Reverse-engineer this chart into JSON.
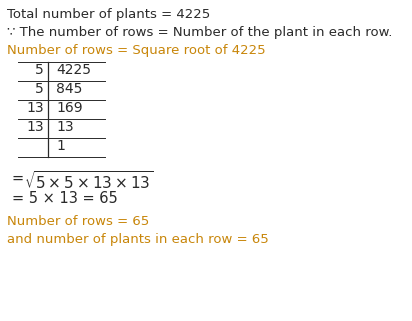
{
  "bg_color": "#ffffff",
  "text_color_black": "#2a2a2a",
  "text_color_orange": "#c8860a",
  "line1": "Total number of plants = 4225",
  "line2": "∵ The number of rows = Number of the plant in each row.",
  "line3": "Number of rows = Square root of 4225",
  "division_rows": [
    {
      "divisor": "5",
      "dividend": "4225"
    },
    {
      "divisor": "5",
      "dividend": "845"
    },
    {
      "divisor": "13",
      "dividend": "169"
    },
    {
      "divisor": "13",
      "dividend": "13"
    },
    {
      "divisor": "",
      "dividend": "1"
    }
  ],
  "expr1_eq": "=",
  "expr1_sqrt": "5×5×13×13",
  "expr2": "= 5 × 13 = 65",
  "conclusion1": "Number of rows = 65",
  "conclusion2": "and number of plants in each row = 65",
  "figsize": [
    4.12,
    3.21
  ],
  "dpi": 100,
  "fs_main": 9.5,
  "fs_div": 10.0,
  "fs_expr": 10.5
}
